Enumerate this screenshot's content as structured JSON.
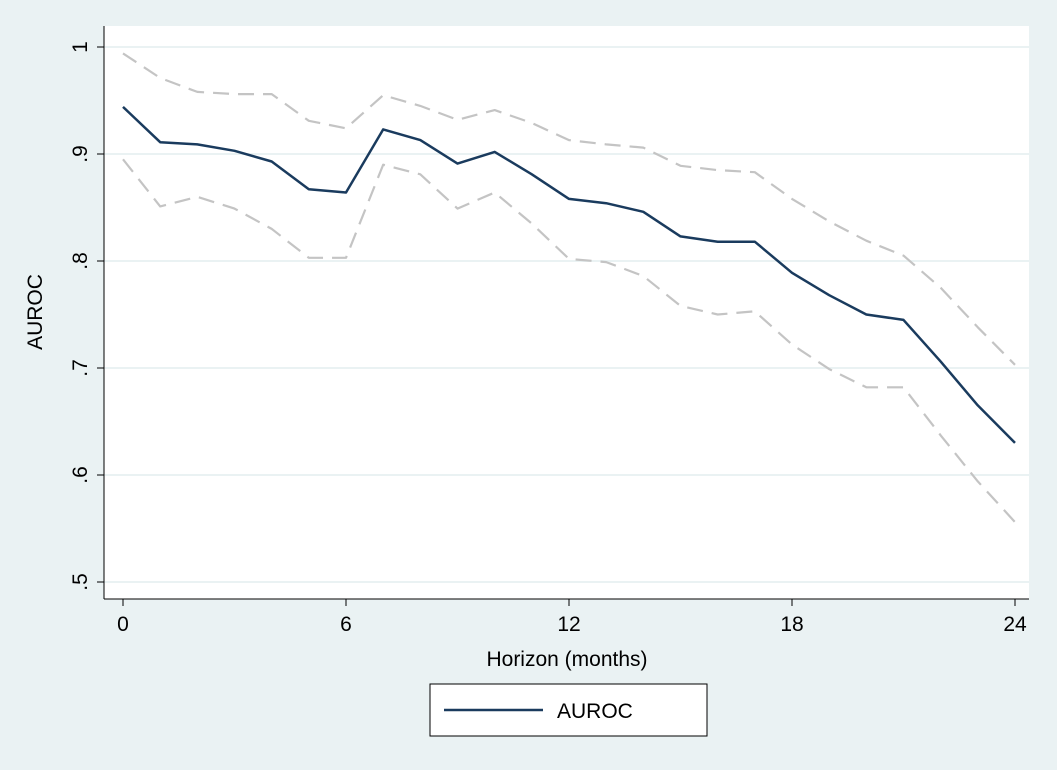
{
  "chart_data": {
    "type": "line",
    "xlabel": "Horizon (months)",
    "ylabel": "AUROC",
    "xlim": [
      0,
      24
    ],
    "ylim": [
      0.5,
      1.0
    ],
    "x_ticks": [
      0,
      6,
      12,
      18,
      24
    ],
    "x_tick_labels": [
      "0",
      "6",
      "12",
      "18",
      "24"
    ],
    "y_ticks": [
      0.5,
      0.6,
      0.7,
      0.8,
      0.9,
      1.0
    ],
    "y_tick_labels": [
      ".5",
      ".6",
      ".7",
      ".8",
      ".9",
      "1"
    ],
    "grid": "horizontal",
    "legend": {
      "position": "bottom",
      "entries": [
        "AUROC"
      ]
    },
    "x": [
      0,
      1,
      2,
      3,
      4,
      5,
      6,
      7,
      8,
      9,
      10,
      11,
      12,
      13,
      14,
      15,
      16,
      17,
      18,
      19,
      20,
      21,
      22,
      23,
      24
    ],
    "series": [
      {
        "name": "AUROC",
        "style": "solid",
        "color": "#1a3b5e",
        "values": [
          0.944,
          0.911,
          0.909,
          0.903,
          0.893,
          0.867,
          0.864,
          0.923,
          0.913,
          0.891,
          0.902,
          0.881,
          0.858,
          0.854,
          0.846,
          0.823,
          0.818,
          0.818,
          0.789,
          0.768,
          0.75,
          0.745,
          0.706,
          0.665,
          0.63
        ]
      },
      {
        "style": "dashed",
        "color": "#c4c4c4",
        "values": [
          0.994,
          0.971,
          0.958,
          0.956,
          0.956,
          0.931,
          0.924,
          0.955,
          0.945,
          0.932,
          0.941,
          0.929,
          0.913,
          0.909,
          0.906,
          0.889,
          0.885,
          0.883,
          0.858,
          0.837,
          0.819,
          0.805,
          0.775,
          0.738,
          0.703
        ]
      },
      {
        "style": "dashed",
        "color": "#c4c4c4",
        "values": [
          0.895,
          0.851,
          0.86,
          0.849,
          0.83,
          0.803,
          0.803,
          0.89,
          0.881,
          0.849,
          0.864,
          0.835,
          0.802,
          0.799,
          0.786,
          0.758,
          0.75,
          0.753,
          0.722,
          0.699,
          0.682,
          0.682,
          0.637,
          0.594,
          0.556
        ]
      }
    ]
  }
}
